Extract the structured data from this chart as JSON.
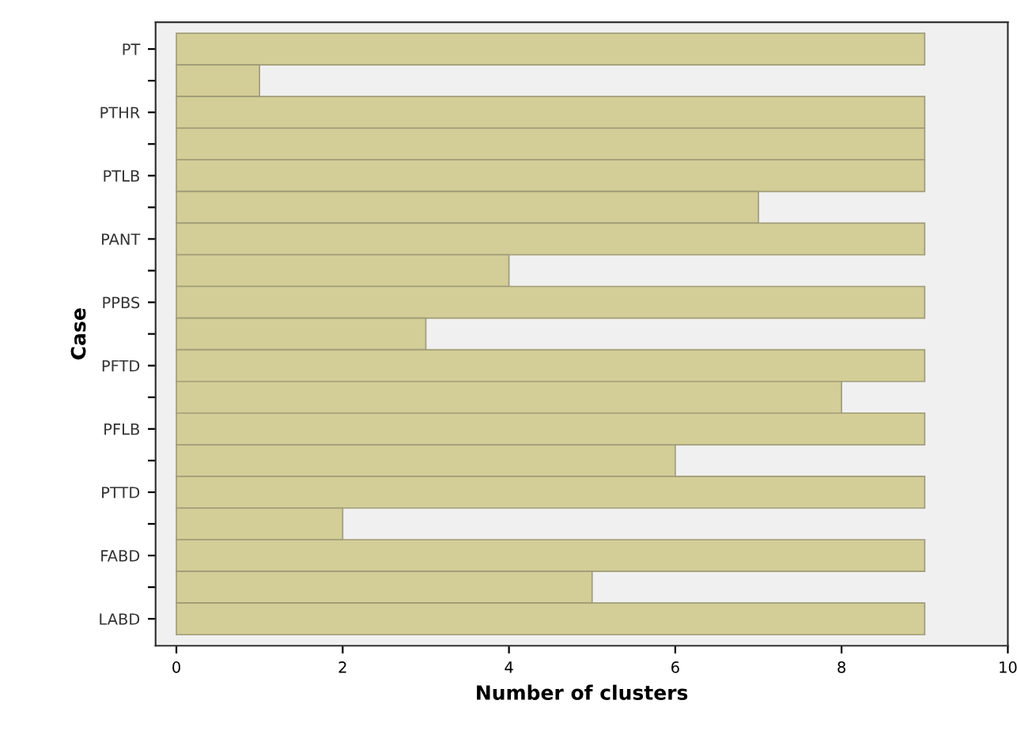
{
  "chart_data": {
    "type": "bar",
    "orientation": "horizontal",
    "xlabel": "Number of clusters",
    "ylabel": "Case",
    "categories": [
      "PT",
      null,
      "PTHR",
      null,
      "PTLB",
      null,
      "PANT",
      null,
      "PPBS",
      null,
      "PFTD",
      null,
      "PFLB",
      null,
      "PTTD",
      null,
      "FABD",
      null,
      "LABD"
    ],
    "values": [
      9,
      1,
      9,
      9,
      9,
      7,
      9,
      4,
      9,
      3,
      9,
      8,
      9,
      6,
      9,
      2,
      9,
      5,
      9
    ],
    "color": "#d3cd97",
    "xlim": [
      -0.25,
      10
    ],
    "xticks": [
      0,
      2,
      4,
      6,
      8,
      10
    ],
    "grid": false,
    "legend": false
  }
}
